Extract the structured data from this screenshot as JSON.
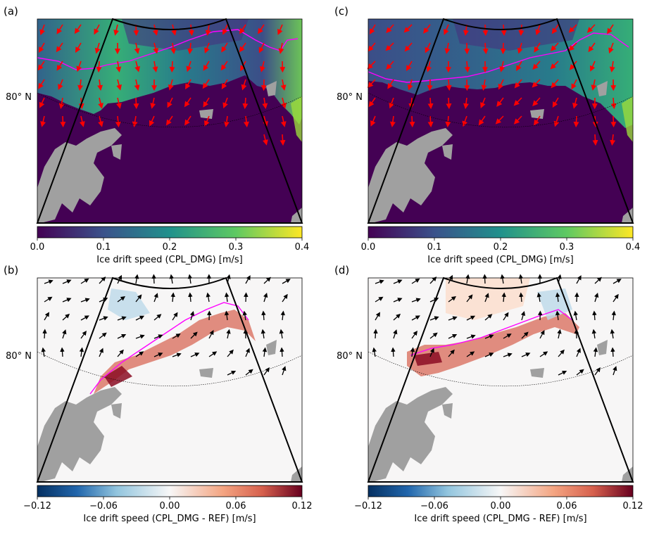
{
  "panels": [
    {
      "label": "(a)",
      "type": "speed",
      "lat_label": "80° N",
      "colorbar": {
        "ticks": [
          "0.0",
          "0.1",
          "0.2",
          "0.3",
          "0.4"
        ],
        "label": "Ice drift speed (CPL_DMG) [m/s]",
        "colormap": "viridis"
      }
    },
    {
      "label": "(b)",
      "type": "diff",
      "lat_label": "80° N",
      "colorbar": {
        "ticks": [
          "−0.12",
          "−0.06",
          "0.00",
          "0.06",
          "0.12"
        ],
        "label": "Ice drift speed (CPL_DMG - REF) [m/s]",
        "colormap": "RdBu_r"
      }
    },
    {
      "label": "(c)",
      "type": "speed",
      "lat_label": "80° N",
      "colorbar": {
        "ticks": [
          "0.0",
          "0.1",
          "0.2",
          "0.3",
          "0.4"
        ],
        "label": "Ice drift speed (CPL_DMG) [m/s]",
        "colormap": "viridis"
      }
    },
    {
      "label": "(d)",
      "type": "diff",
      "lat_label": "80° N",
      "colorbar": {
        "ticks": [
          "−0.12",
          "−0.06",
          "0.00",
          "0.06",
          "0.12"
        ],
        "label": "Ice drift speed (CPL_DMG - REF) [m/s]",
        "colormap": "RdBu_r"
      }
    }
  ],
  "colors": {
    "land": "#a0a0a0",
    "ocean_ice_free": "#440154",
    "ice_edge_contour": "#ff00ff",
    "speed_vectors": "#ff0000",
    "diff_vectors": "#000000",
    "diff_background": "#f7f6f6"
  }
}
